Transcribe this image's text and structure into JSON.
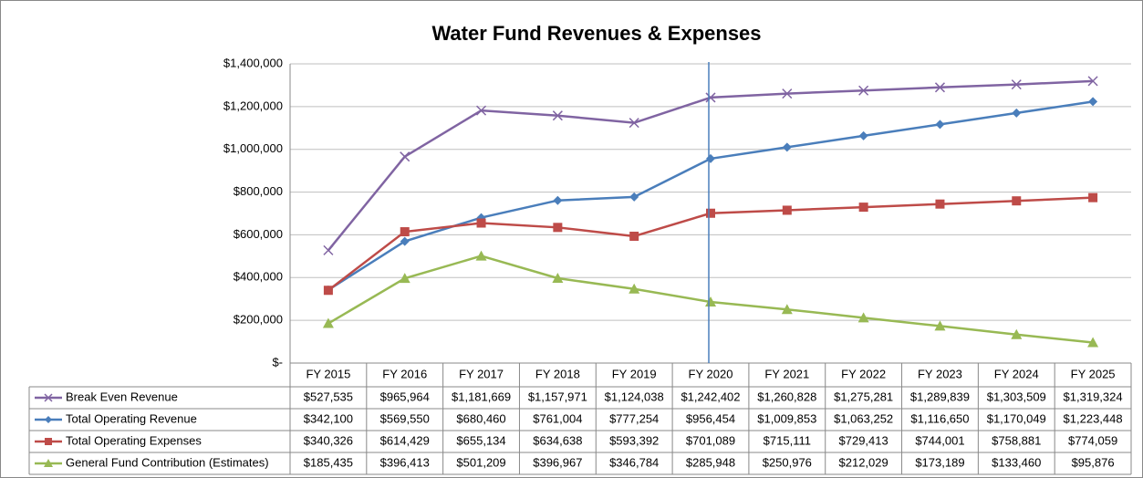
{
  "chart_data": {
    "type": "line",
    "title": "Water Fund Revenues & Expenses",
    "categories": [
      "FY 2015",
      "FY 2016",
      "FY 2017",
      "FY 2018",
      "FY 2019",
      "FY 2020",
      "FY 2021",
      "FY 2022",
      "FY 2023",
      "FY 2024",
      "FY 2025"
    ],
    "series": [
      {
        "name": "Break Even Revenue",
        "color": "#8064a2",
        "marker": "x",
        "values": [
          527535,
          965964,
          1181669,
          1157971,
          1124038,
          1242402,
          1260828,
          1275281,
          1289839,
          1303509,
          1319324
        ],
        "value_labels": [
          "$527,535",
          "$965,964",
          "$1,181,669",
          "$1,157,971",
          "$1,124,038",
          "$1,242,402",
          "$1,260,828",
          "$1,275,281",
          "$1,289,839",
          "$1,303,509",
          "$1,319,324"
        ]
      },
      {
        "name": "Total Operating Revenue",
        "color": "#4a7ebb",
        "marker": "diamond",
        "values": [
          342100,
          569550,
          680460,
          761004,
          777254,
          956454,
          1009853,
          1063252,
          1116650,
          1170049,
          1223448
        ],
        "value_labels": [
          "$342,100",
          "$569,550",
          "$680,460",
          "$761,004",
          "$777,254",
          "$956,454",
          "$1,009,853",
          "$1,063,252",
          "$1,116,650",
          "$1,170,049",
          "$1,223,448"
        ]
      },
      {
        "name": "Total Operating Expenses",
        "color": "#be4b48",
        "marker": "square",
        "values": [
          340326,
          614429,
          655134,
          634638,
          593392,
          701089,
          715111,
          729413,
          744001,
          758881,
          774059
        ],
        "value_labels": [
          "$340,326",
          "$614,429",
          "$655,134",
          "$634,638",
          "$593,392",
          "$701,089",
          "$715,111",
          "$729,413",
          "$744,001",
          "$758,881",
          "$774,059"
        ]
      },
      {
        "name": "General Fund Contribution (Estimates)",
        "color": "#98b954",
        "marker": "triangle",
        "values": [
          185435,
          396413,
          501209,
          396967,
          346784,
          285948,
          250976,
          212029,
          173189,
          133460,
          95876
        ],
        "value_labels": [
          "$185,435",
          "$396,413",
          "$501,209",
          "$396,967",
          "$346,784",
          "$285,948",
          "$250,976",
          "$212,029",
          "$173,189",
          "$133,460",
          "$95,876"
        ]
      }
    ],
    "ylim": [
      0,
      1400000
    ],
    "yticks": [
      {
        "value": 0,
        "label": "$-"
      },
      {
        "value": 200000,
        "label": "$200,000"
      },
      {
        "value": 400000,
        "label": "$400,000"
      },
      {
        "value": 600000,
        "label": "$600,000"
      },
      {
        "value": 800000,
        "label": "$800,000"
      },
      {
        "value": 1000000,
        "label": "$1,000,000"
      },
      {
        "value": 1200000,
        "label": "$1,200,000"
      },
      {
        "value": 1400000,
        "label": "$1,400,000"
      }
    ],
    "grid": true
  }
}
